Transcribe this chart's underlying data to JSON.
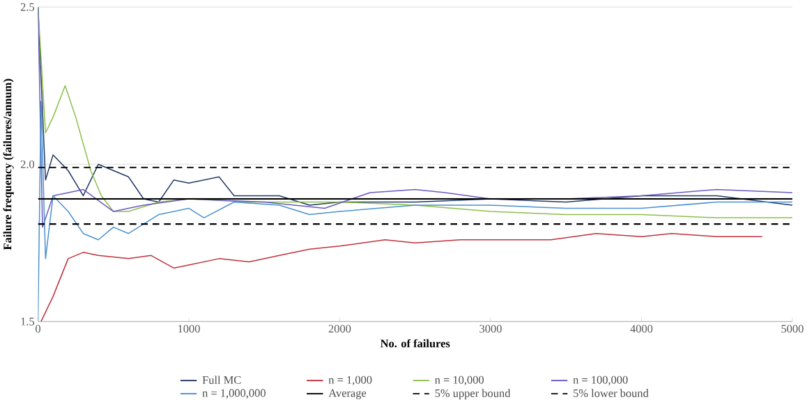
{
  "chart_data": {
    "type": "line",
    "xlabel": "No. of failures",
    "ylabel": "Failure frequency (failures/annum)",
    "xlim": [
      0,
      5000
    ],
    "xticks": [
      0,
      1000,
      2000,
      3000,
      4000,
      5000
    ],
    "ylim": [
      1.5,
      2.5
    ],
    "yticks": [
      {
        "value": 1.5,
        "label": "1.5"
      },
      {
        "value": 2.0,
        "label": "2.0"
      },
      {
        "value": 2.5,
        "label": "2.5"
      }
    ],
    "grid": "y",
    "legend": "bottom",
    "series": [
      {
        "name": "Full MC",
        "color": "#1f3864",
        "line_style": "solid",
        "x": [
          0,
          50,
          100,
          200,
          300,
          400,
          500,
          600,
          700,
          800,
          900,
          1000,
          1100,
          1200,
          1300,
          1400,
          1600,
          1800,
          2000,
          2500,
          3000,
          3500,
          4000,
          4500,
          5000
        ],
        "values": [
          2.5,
          1.95,
          2.03,
          1.98,
          1.9,
          2.0,
          1.98,
          1.96,
          1.89,
          1.88,
          1.95,
          1.94,
          1.95,
          1.96,
          1.9,
          1.9,
          1.9,
          1.87,
          1.88,
          1.88,
          1.89,
          1.88,
          1.9,
          1.9,
          1.87
        ]
      },
      {
        "name": "n = 1,000",
        "color": "#c0313a",
        "line_style": "solid",
        "x": [
          20,
          100,
          200,
          300,
          400,
          600,
          750,
          900,
          1000,
          1200,
          1400,
          1600,
          1800,
          2000,
          2300,
          2500,
          2800,
          3000,
          3400,
          3700,
          4000,
          4200,
          4500,
          4800
        ],
        "values": [
          1.5,
          1.58,
          1.7,
          1.72,
          1.71,
          1.7,
          1.71,
          1.67,
          1.68,
          1.7,
          1.69,
          1.71,
          1.73,
          1.74,
          1.76,
          1.75,
          1.76,
          1.76,
          1.76,
          1.78,
          1.77,
          1.78,
          1.77,
          1.77
        ]
      },
      {
        "name": "n = 10,000",
        "color": "#8cbf4a",
        "line_style": "solid",
        "x": [
          0,
          50,
          100,
          180,
          250,
          350,
          420,
          500,
          600,
          800,
          1000,
          1400,
          2000,
          2500,
          3000,
          3500,
          4000,
          4500,
          5000
        ],
        "values": [
          2.5,
          2.1,
          2.15,
          2.25,
          2.15,
          1.98,
          1.9,
          1.85,
          1.85,
          1.88,
          1.89,
          1.88,
          1.88,
          1.87,
          1.85,
          1.84,
          1.84,
          1.83,
          1.83
        ]
      },
      {
        "name": "n = 100,000",
        "color": "#6a5ac0",
        "line_style": "solid",
        "x": [
          0,
          30,
          100,
          300,
          500,
          700,
          1000,
          1500,
          1900,
          2200,
          2500,
          2700,
          3000,
          3500,
          4000,
          4500,
          5000
        ],
        "values": [
          2.5,
          1.8,
          1.9,
          1.92,
          1.85,
          1.87,
          1.89,
          1.88,
          1.86,
          1.91,
          1.92,
          1.91,
          1.89,
          1.89,
          1.9,
          1.92,
          1.91
        ]
      },
      {
        "name": "n = 1,000,000",
        "color": "#4a90d0",
        "line_style": "solid",
        "x": [
          0,
          20,
          50,
          100,
          200,
          300,
          400,
          500,
          600,
          800,
          1000,
          1100,
          1300,
          1600,
          1800,
          2000,
          2500,
          3000,
          3500,
          4000,
          4500,
          5000
        ],
        "values": [
          1.5,
          2.2,
          1.7,
          1.9,
          1.85,
          1.78,
          1.76,
          1.8,
          1.78,
          1.84,
          1.86,
          1.83,
          1.88,
          1.87,
          1.84,
          1.85,
          1.87,
          1.87,
          1.86,
          1.86,
          1.88,
          1.88
        ]
      },
      {
        "name": "Average",
        "color": "#000000",
        "line_style": "solid",
        "x": [
          0,
          5000
        ],
        "values": [
          1.89,
          1.89
        ]
      },
      {
        "name": "5% upper bound",
        "color": "#000000",
        "line_style": "dashed",
        "x": [
          0,
          5000
        ],
        "values": [
          1.99,
          1.99
        ]
      },
      {
        "name": "5% lower bound",
        "color": "#000000",
        "line_style": "dashed",
        "x": [
          0,
          5000
        ],
        "values": [
          1.81,
          1.81
        ]
      }
    ]
  }
}
